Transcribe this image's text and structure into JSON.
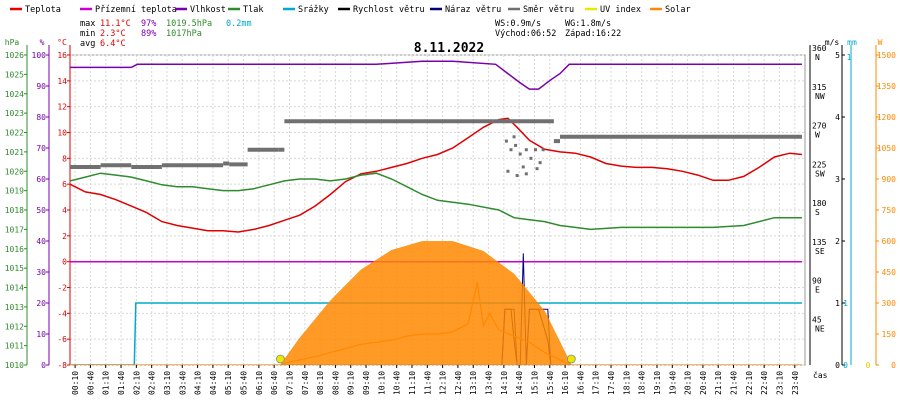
{
  "chart_data": {
    "type": "line",
    "title": "8.11.2022",
    "legend": {
      "placement": "top",
      "items": [
        {
          "name": "Teplota",
          "color": "#e00000"
        },
        {
          "name": "Přízemní teplota",
          "color": "#cc00cc"
        },
        {
          "name": "Vlhkost",
          "color": "#7a00aa"
        },
        {
          "name": "Tlak",
          "color": "#2e8b2e"
        },
        {
          "name": "Srážky",
          "color": "#00aacc"
        },
        {
          "name": "Rychlost větru",
          "color": "#000000"
        },
        {
          "name": "Náraz větru",
          "color": "#000080"
        },
        {
          "name": "Směr větru",
          "color": "#707070"
        },
        {
          "name": "UV index",
          "color": "#e8e800"
        },
        {
          "name": "Solar",
          "color": "#ff8800"
        }
      ]
    },
    "stats": {
      "max": {
        "label": "max",
        "temp": "11.1°C",
        "hum": "97%",
        "press": "1019.5hPa",
        "rain": "0.2mm"
      },
      "min": {
        "label": "min",
        "temp": "2.3°C",
        "hum": "89%",
        "press": "1017hPa"
      },
      "avg": {
        "label": "avg",
        "temp": "6.4°C"
      }
    },
    "info": {
      "ws": "WS:0.9m/s",
      "wg": "WG:1.8m/s",
      "sunrise": "Východ:06:52",
      "sunset": "Západ:16:22"
    },
    "axes": {
      "hpa": {
        "unit": "hPa",
        "range": [
          1010,
          1026
        ],
        "ticks": [
          "1010",
          "1011",
          "1012",
          "1013",
          "1014",
          "1015",
          "1016",
          "1017",
          "1018",
          "1019",
          "1020",
          "1021",
          "1022",
          "1023",
          "1024",
          "1025",
          "1026"
        ]
      },
      "percent": {
        "unit": "%",
        "range": [
          0,
          100
        ],
        "ticks": [
          "0",
          "10",
          "20",
          "30",
          "40",
          "50",
          "60",
          "70",
          "80",
          "90",
          "100"
        ]
      },
      "celsius": {
        "unit": "°C",
        "range": [
          -8,
          16
        ],
        "ticks": [
          "-8",
          "-6",
          "-4",
          "-2",
          "0",
          "2",
          "4",
          "6",
          "8",
          "10",
          "12",
          "14",
          "16"
        ]
      },
      "direction": {
        "range": [
          0,
          360
        ],
        "ticks": [
          "0",
          "45",
          "90",
          "135",
          "180",
          "225",
          "270",
          "315",
          "360"
        ],
        "labels": [
          "",
          "NE",
          "E",
          "SE",
          "S",
          "SW",
          "W",
          "NW",
          "N"
        ]
      },
      "ms": {
        "unit": "m/s",
        "range": [
          0,
          5
        ],
        "ticks": [
          "0",
          "1",
          "2",
          "3",
          "4",
          "5"
        ]
      },
      "mm": {
        "unit": "mm",
        "range": [
          0,
          1
        ],
        "ticks": [
          "0",
          "1"
        ]
      },
      "watts": {
        "unit": "W",
        "range": [
          0,
          1500
        ],
        "ticks": [
          "0",
          "150",
          "300",
          "450",
          "600",
          "750",
          "900",
          "1050",
          "1200",
          "1350",
          "1500"
        ]
      },
      "x": {
        "label": "čas",
        "ticks": [
          "00:10",
          "00:40",
          "01:10",
          "01:40",
          "02:10",
          "02:40",
          "03:10",
          "03:40",
          "04:10",
          "04:40",
          "05:10",
          "05:40",
          "06:10",
          "06:40",
          "07:10",
          "07:40",
          "08:10",
          "08:40",
          "09:10",
          "09:40",
          "10:10",
          "10:40",
          "11:10",
          "11:40",
          "12:10",
          "12:40",
          "13:10",
          "13:40",
          "14:10",
          "14:40",
          "15:10",
          "15:40",
          "16:10",
          "16:40",
          "17:10",
          "17:40",
          "18:10",
          "18:40",
          "19:10",
          "19:40",
          "20:10",
          "20:40",
          "21:10",
          "21:40",
          "22:10",
          "22:40",
          "23:10",
          "23:40"
        ]
      }
    },
    "series": [
      {
        "name": "Teplota",
        "axis": "celsius",
        "x": [
          0,
          0.5,
          1,
          1.5,
          2,
          2.5,
          3,
          3.5,
          4,
          4.5,
          5,
          5.5,
          6,
          6.5,
          7,
          7.5,
          8,
          8.5,
          9,
          9.5,
          10,
          10.5,
          11,
          11.5,
          12,
          12.5,
          13,
          13.5,
          14,
          14.3,
          14.6,
          15,
          15.5,
          16,
          16.5,
          17,
          17.5,
          18,
          18.5,
          19,
          19.5,
          20,
          20.5,
          21,
          21.5,
          22,
          22.5,
          23,
          23.5,
          23.9
        ],
        "values": [
          6.0,
          5.4,
          5.2,
          4.8,
          4.3,
          3.8,
          3.1,
          2.8,
          2.6,
          2.4,
          2.4,
          2.3,
          2.5,
          2.8,
          3.2,
          3.6,
          4.3,
          5.2,
          6.2,
          6.8,
          7.0,
          7.3,
          7.6,
          8.0,
          8.3,
          8.8,
          9.6,
          10.4,
          11.0,
          11.1,
          10.4,
          9.4,
          8.7,
          8.5,
          8.4,
          8.1,
          7.6,
          7.4,
          7.3,
          7.3,
          7.2,
          7.0,
          6.7,
          6.3,
          6.3,
          6.6,
          7.3,
          8.1,
          8.4,
          8.3
        ]
      },
      {
        "name": "Přízemní teplota",
        "axis": "celsius",
        "x": [
          0,
          23.9
        ],
        "values": [
          0,
          0
        ]
      },
      {
        "name": "Vlhkost",
        "axis": "percent",
        "x": [
          0,
          2,
          2.2,
          6.7,
          7,
          10,
          11.5,
          12.5,
          13.9,
          14.3,
          14.7,
          15.0,
          15.3,
          15.7,
          16,
          16.3,
          23.9
        ],
        "values": [
          96,
          96,
          97,
          97,
          97,
          97,
          98,
          98,
          97,
          94,
          91,
          89,
          89,
          92,
          94,
          97,
          97
        ]
      },
      {
        "name": "Tlak",
        "axis": "hpa",
        "x": [
          0,
          0.5,
          1,
          1.5,
          2,
          2.5,
          3,
          3.5,
          4,
          4.5,
          5,
          5.5,
          6,
          6.5,
          7,
          7.5,
          8,
          8.5,
          9,
          9.5,
          10,
          10.5,
          11,
          11.5,
          12,
          13,
          14,
          14.5,
          15,
          15.5,
          16,
          16.5,
          17,
          18,
          19,
          20,
          21,
          22,
          23,
          23.9
        ],
        "values": [
          1019.5,
          1019.7,
          1019.9,
          1019.8,
          1019.7,
          1019.5,
          1019.3,
          1019.2,
          1019.2,
          1019.1,
          1019.0,
          1019.0,
          1019.1,
          1019.3,
          1019.5,
          1019.6,
          1019.6,
          1019.5,
          1019.6,
          1019.8,
          1019.9,
          1019.6,
          1019.2,
          1018.8,
          1018.5,
          1018.3,
          1018.0,
          1017.6,
          1017.5,
          1017.4,
          1017.2,
          1017.1,
          1017.0,
          1017.1,
          1017.1,
          1017.1,
          1017.1,
          1017.2,
          1017.6,
          1017.6
        ]
      },
      {
        "name": "Srážky",
        "axis": "mm",
        "x": [
          0,
          2.1,
          2.15,
          23.9
        ],
        "values": [
          0,
          0,
          0.2,
          0.2
        ]
      },
      {
        "name": "Rychlost větru",
        "axis": "ms",
        "x": [
          0,
          14.1,
          14.2,
          14.4,
          14.5,
          14.6,
          14.7,
          14.9,
          15.0,
          15.2,
          15.3,
          15.6,
          15.7,
          15.8,
          23.9
        ],
        "values": [
          0,
          0,
          0.9,
          0.9,
          0.4,
          0,
          0,
          0,
          0.9,
          0.9,
          0.9,
          0.4,
          0,
          0,
          0
        ]
      },
      {
        "name": "Náraz větru",
        "axis": "ms",
        "x": [
          0,
          14.1,
          14.2,
          14.5,
          14.6,
          14.7,
          14.8,
          14.9,
          15.0,
          15.2,
          15.3,
          15.6,
          15.7,
          23.9
        ],
        "values": [
          0,
          0,
          0.9,
          0.9,
          0,
          0,
          1.8,
          0,
          0.9,
          0.9,
          0.9,
          0.9,
          0,
          0
        ]
      },
      {
        "name": "Solar",
        "axis": "watts",
        "x": [
          0,
          6.87,
          7,
          7.5,
          8,
          8.5,
          9,
          9.5,
          10,
          10.5,
          11,
          11.5,
          12,
          12.5,
          13,
          13.3,
          13.5,
          13.7,
          14,
          14.5,
          15,
          15.5,
          16,
          16.37,
          23.9
        ],
        "values": [
          0,
          0,
          8,
          25,
          40,
          60,
          80,
          100,
          110,
          120,
          140,
          150,
          150,
          160,
          200,
          400,
          190,
          250,
          170,
          140,
          110,
          60,
          25,
          0,
          0
        ]
      },
      {
        "name": "Solar",
        "axis": "watts",
        "x": [
          0,
          6.87,
          7.5,
          8.5,
          9.5,
          10.5,
          11.5,
          12.5,
          13.5,
          14.5,
          15.5,
          16.37,
          23.9
        ],
        "values": [
          0,
          0,
          130,
          310,
          460,
          555,
          598,
          598,
          550,
          440,
          260,
          0,
          0
        ]
      },
      {
        "name": "Směr větru",
        "axis": "direction",
        "x": [
          0,
          1,
          2,
          3,
          4,
          5,
          5.2,
          5.8,
          6.8,
          7,
          13.8,
          15.8,
          16,
          23.9
        ],
        "values": [
          230,
          232,
          230,
          232,
          232,
          234,
          233,
          250,
          250,
          283,
          283,
          260,
          265,
          265
        ]
      },
      {
        "name": "UV index",
        "axis": "watts",
        "x": [
          6.87,
          16.37
        ],
        "values": [
          0,
          0
        ]
      }
    ],
    "grid": true
  }
}
